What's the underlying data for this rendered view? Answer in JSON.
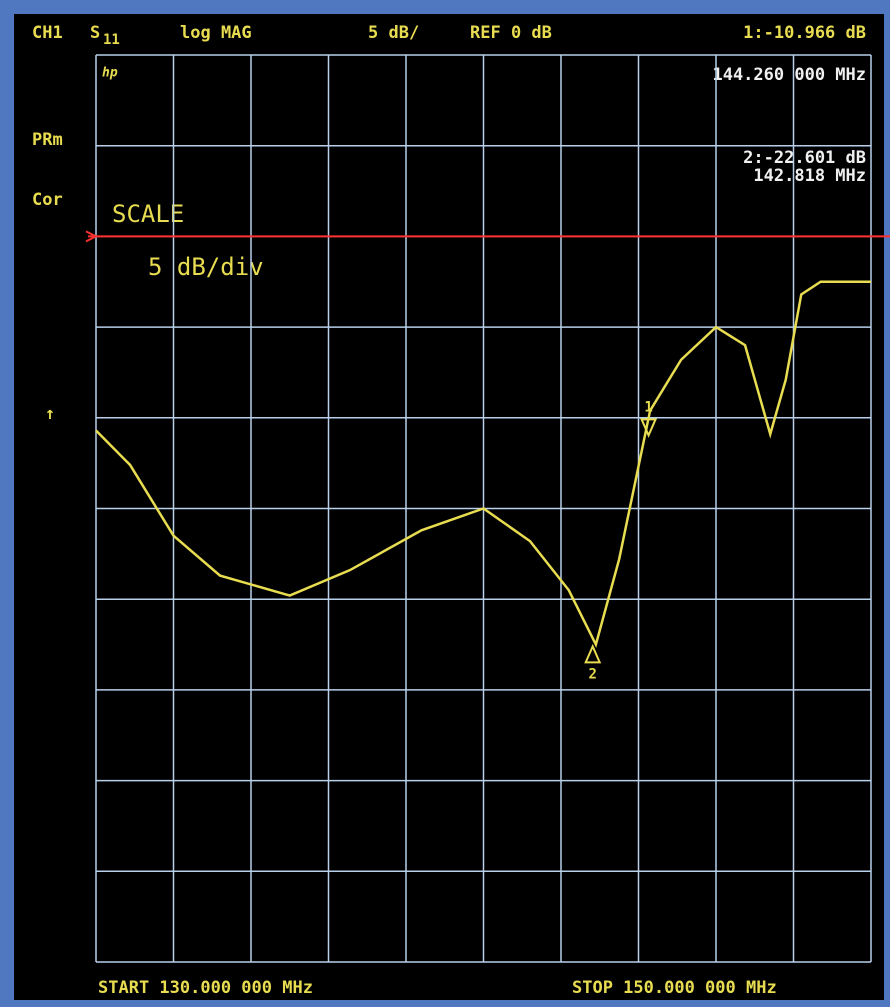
{
  "chart_data": {
    "type": "line",
    "channel": "CH1",
    "parameter": {
      "letter": "S",
      "index": "11"
    },
    "format": "log MAG",
    "scale": "5 dB/",
    "reference": "REF 0 dB",
    "ref_level": 0,
    "ref_color": "#ff3030",
    "side_labels": [
      "PRm",
      "Cor"
    ],
    "brand": "hp",
    "arrow": "↑",
    "scale_note": [
      "SCALE",
      "5 dB/div"
    ],
    "start": "START 130.000 000 MHz",
    "stop": "STOP 150.000 000 MHz",
    "xlim": [
      130,
      150
    ],
    "ylim": [
      -40,
      10
    ],
    "xticks": [
      130,
      132,
      134,
      136,
      138,
      140,
      142,
      144,
      146,
      148,
      150
    ],
    "yticks": [
      -40,
      -35,
      -30,
      -25,
      -20,
      -15,
      -10,
      -5,
      0,
      5,
      10
    ],
    "grid": true,
    "color": "#e8dc50",
    "x": [
      130,
      130.88,
      132,
      133.2,
      135,
      136.55,
      138.4,
      140,
      141.2,
      142.2,
      142.9,
      143.5,
      144.3,
      145.1,
      146,
      146.75,
      147.4,
      147.8,
      148.2,
      148.7,
      150
    ],
    "values": [
      -10.7,
      -12.6,
      -16.5,
      -18.7,
      -19.8,
      -18.4,
      -16.2,
      -15,
      -16.8,
      -19.5,
      -22.5,
      -17.8,
      -9.6,
      -6.8,
      -5,
      -6,
      -10.9,
      -7.9,
      -3.2,
      -2.5,
      -2.5
    ],
    "markers": [
      {
        "name": "1",
        "x": 144.26,
        "y": -10.966,
        "readout": "1:-10.966 dB",
        "freq": "144.260 000 MHz"
      },
      {
        "name": "2",
        "x": 142.818,
        "y": -22.601,
        "readout": "2:-22.601 dB",
        "freq": "142.818 MHz"
      }
    ]
  }
}
